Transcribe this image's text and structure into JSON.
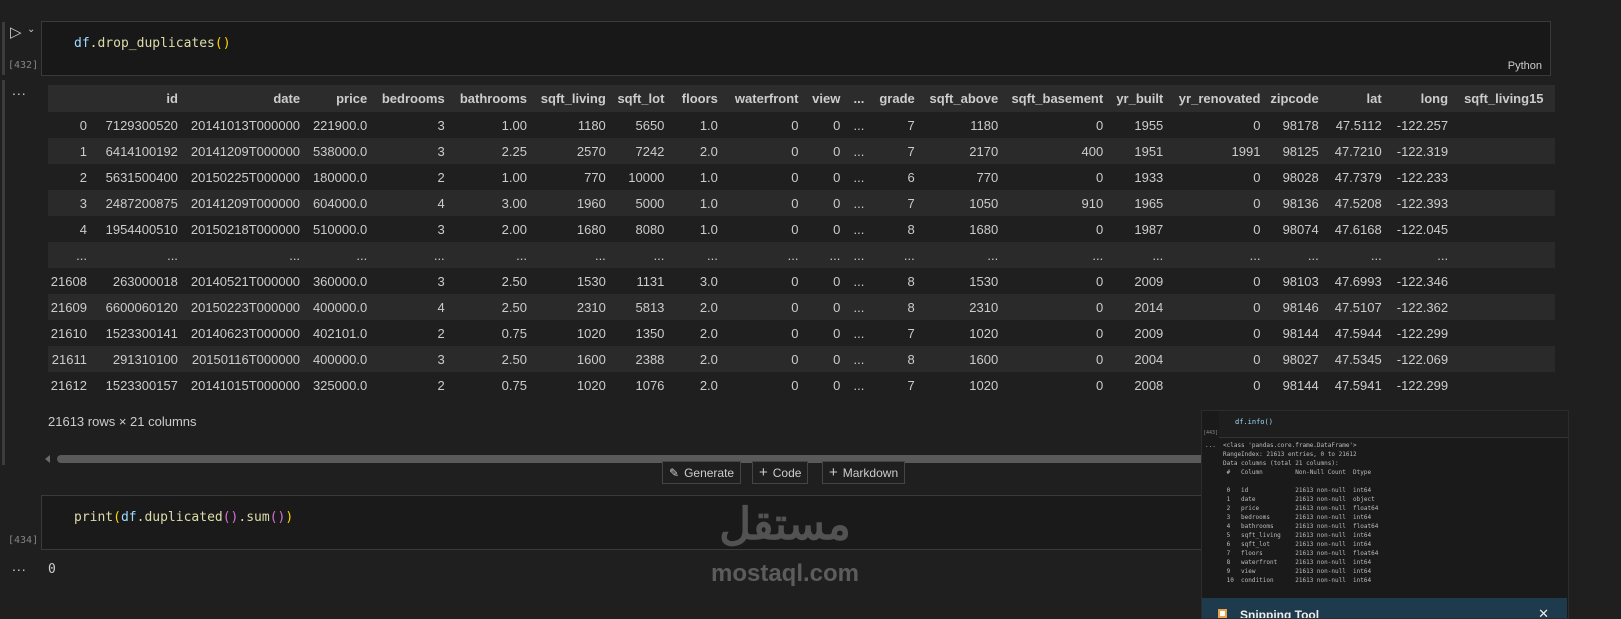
{
  "cell1": {
    "exec_count": "[432]",
    "code_fn_obj": "df",
    "code_method": ".drop_duplicates",
    "code_parens": "()",
    "language": "Python"
  },
  "output1": {
    "ellipsis": "...",
    "columns": [
      "",
      "id",
      "date",
      "price",
      "bedrooms",
      "bathrooms",
      "sqft_living",
      "sqft_lot",
      "floors",
      "waterfront",
      "view",
      "...",
      "grade",
      "sqft_above",
      "sqft_basement",
      "yr_built",
      "yr_renovated",
      "zipcode",
      "lat",
      "long",
      "sqft_living15"
    ],
    "rows": [
      [
        "0",
        "7129300520",
        "20141013T000000",
        "221900.0",
        "3",
        "1.00",
        "1180",
        "5650",
        "1.0",
        "0",
        "0",
        "...",
        "7",
        "1180",
        "0",
        "1955",
        "0",
        "98178",
        "47.5112",
        "-122.257",
        ""
      ],
      [
        "1",
        "6414100192",
        "20141209T000000",
        "538000.0",
        "3",
        "2.25",
        "2570",
        "7242",
        "2.0",
        "0",
        "0",
        "...",
        "7",
        "2170",
        "400",
        "1951",
        "1991",
        "98125",
        "47.7210",
        "-122.319",
        ""
      ],
      [
        "2",
        "5631500400",
        "20150225T000000",
        "180000.0",
        "2",
        "1.00",
        "770",
        "10000",
        "1.0",
        "0",
        "0",
        "...",
        "6",
        "770",
        "0",
        "1933",
        "0",
        "98028",
        "47.7379",
        "-122.233",
        ""
      ],
      [
        "3",
        "2487200875",
        "20141209T000000",
        "604000.0",
        "4",
        "3.00",
        "1960",
        "5000",
        "1.0",
        "0",
        "0",
        "...",
        "7",
        "1050",
        "910",
        "1965",
        "0",
        "98136",
        "47.5208",
        "-122.393",
        ""
      ],
      [
        "4",
        "1954400510",
        "20150218T000000",
        "510000.0",
        "3",
        "2.00",
        "1680",
        "8080",
        "1.0",
        "0",
        "0",
        "...",
        "8",
        "1680",
        "0",
        "1987",
        "0",
        "98074",
        "47.6168",
        "-122.045",
        ""
      ],
      [
        "...",
        "...",
        "...",
        "...",
        "...",
        "...",
        "...",
        "...",
        "...",
        "...",
        "...",
        "...",
        "...",
        "...",
        "...",
        "...",
        "...",
        "...",
        "...",
        "...",
        ""
      ],
      [
        "21608",
        "263000018",
        "20140521T000000",
        "360000.0",
        "3",
        "2.50",
        "1530",
        "1131",
        "3.0",
        "0",
        "0",
        "...",
        "8",
        "1530",
        "0",
        "2009",
        "0",
        "98103",
        "47.6993",
        "-122.346",
        ""
      ],
      [
        "21609",
        "6600060120",
        "20150223T000000",
        "400000.0",
        "4",
        "2.50",
        "2310",
        "5813",
        "2.0",
        "0",
        "0",
        "...",
        "8",
        "2310",
        "0",
        "2014",
        "0",
        "98146",
        "47.5107",
        "-122.362",
        ""
      ],
      [
        "21610",
        "1523300141",
        "20140623T000000",
        "402101.0",
        "2",
        "0.75",
        "1020",
        "1350",
        "2.0",
        "0",
        "0",
        "...",
        "7",
        "1020",
        "0",
        "2009",
        "0",
        "98144",
        "47.5944",
        "-122.299",
        ""
      ],
      [
        "21611",
        "291310100",
        "20150116T000000",
        "400000.0",
        "3",
        "2.50",
        "1600",
        "2388",
        "2.0",
        "0",
        "0",
        "...",
        "8",
        "1600",
        "0",
        "2004",
        "0",
        "98027",
        "47.5345",
        "-122.069",
        ""
      ],
      [
        "21612",
        "1523300157",
        "20141015T000000",
        "325000.0",
        "2",
        "0.75",
        "1020",
        "1076",
        "2.0",
        "0",
        "0",
        "...",
        "7",
        "1020",
        "0",
        "2008",
        "0",
        "98144",
        "47.5941",
        "-122.299",
        ""
      ]
    ],
    "shape": "21613 rows × 21 columns"
  },
  "toolbar": {
    "generate": "Generate",
    "code": "Code",
    "markdown": "Markdown"
  },
  "cell2": {
    "exec_count": "[434]",
    "code_print": "print",
    "code_obj": "df",
    "code_m1": ".duplicated",
    "code_m2": ".sum",
    "output": "0",
    "ellipsis": "..."
  },
  "watermark": {
    "arabic": "مستقل",
    "latin": "mostaql.com"
  },
  "overlay": {
    "code": "df.info()",
    "exec_count": "[443]",
    "ellipsis": "...",
    "lines": [
      "<class 'pandas.core.frame.DataFrame'>",
      "RangeIndex: 21613 entries, 0 to 21612",
      "Data columns (total 21 columns):",
      " #   Column         Non-Null Count  Dtype",
      "",
      " 0   id             21613 non-null  int64",
      " 1   date           21613 non-null  object",
      " 2   price          21613 non-null  float64",
      " 3   bedrooms       21613 non-null  int64",
      " 4   bathrooms      21613 non-null  float64",
      " 5   sqft_living    21613 non-null  int64",
      " 6   sqft_lot       21613 non-null  int64",
      " 7   floors         21613 non-null  float64",
      " 8   waterfront     21613 non-null  int64",
      " 9   view           21613 non-null  int64",
      " 10  condition      21613 non-null  int64"
    ],
    "snip_title": "Snipping Tool"
  }
}
